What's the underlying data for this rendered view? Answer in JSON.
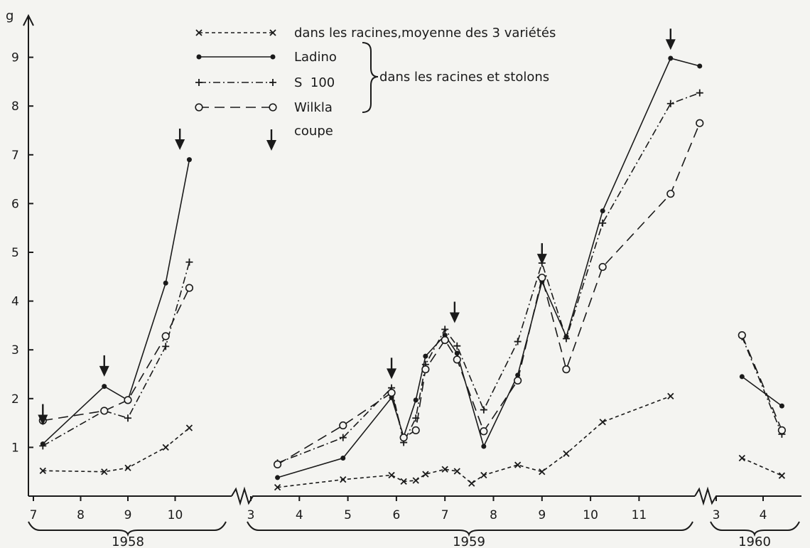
{
  "chart_data": {
    "type": "line",
    "ylabel": "g",
    "ylim": [
      0,
      9.5
    ],
    "yticks": [
      1,
      2,
      3,
      4,
      5,
      6,
      7,
      8,
      9
    ],
    "x_unit": "month",
    "grid": false,
    "legend_position": "top-center",
    "legend": {
      "items": [
        {
          "key": "mean",
          "label": "dans les racines,moyenne des 3 variétés"
        },
        {
          "key": "ladino",
          "label": "Ladino"
        },
        {
          "key": "s100",
          "label": "S  100"
        },
        {
          "key": "wilkla",
          "label": "Wilkla"
        }
      ],
      "bracket_label": "dans les racines et stolons",
      "cut_label": "coupe"
    },
    "periods": [
      {
        "year": "1958",
        "ticks": [
          {
            "label": "7",
            "x": 7.0
          },
          {
            "label": "8",
            "x": 8.0
          },
          {
            "label": "9",
            "x": 9.0
          },
          {
            "label": "10",
            "x": 10.0
          }
        ]
      },
      {
        "year": "1959",
        "ticks": [
          {
            "label": "3",
            "x": 3.0
          },
          {
            "label": "4",
            "x": 4.0
          },
          {
            "label": "5",
            "x": 5.0
          },
          {
            "label": "6",
            "x": 6.0
          },
          {
            "label": "7",
            "x": 7.0
          },
          {
            "label": "8",
            "x": 8.0
          },
          {
            "label": "9",
            "x": 9.0
          },
          {
            "label": "10",
            "x": 10.0
          },
          {
            "label": "11",
            "x": 11.0
          }
        ]
      },
      {
        "year": "1960",
        "ticks": [
          {
            "label": "3",
            "x": 3.0
          },
          {
            "label": "4",
            "x": 4.0
          }
        ]
      }
    ],
    "cuts": [
      {
        "period": 0,
        "x": 7.2,
        "y": 1.45
      },
      {
        "period": 0,
        "x": 8.5,
        "y": 2.45
      },
      {
        "period": 0,
        "x": 10.1,
        "y": 7.1
      },
      {
        "period": 1,
        "x": 5.9,
        "y": 2.4
      },
      {
        "period": 1,
        "x": 7.2,
        "y": 3.55
      },
      {
        "period": 1,
        "x": 9.0,
        "y": 4.75
      },
      {
        "period": 1,
        "x": 11.65,
        "y": 9.15
      }
    ],
    "series": [
      {
        "key": "mean",
        "name": "dans les racines,moyenne des 3 variétés",
        "marker": "x",
        "dash": "5,4",
        "segments": [
          [
            {
              "p": 0,
              "x": 7.2,
              "y": 0.52
            },
            {
              "p": 0,
              "x": 8.5,
              "y": 0.5
            },
            {
              "p": 0,
              "x": 9.0,
              "y": 0.58
            },
            {
              "p": 0,
              "x": 9.8,
              "y": 1.0
            },
            {
              "p": 0,
              "x": 10.3,
              "y": 1.4
            }
          ],
          [
            {
              "p": 1,
              "x": 3.55,
              "y": 0.18
            },
            {
              "p": 1,
              "x": 4.9,
              "y": 0.34
            },
            {
              "p": 1,
              "x": 5.9,
              "y": 0.43
            },
            {
              "p": 1,
              "x": 6.15,
              "y": 0.3
            },
            {
              "p": 1,
              "x": 6.4,
              "y": 0.32
            },
            {
              "p": 1,
              "x": 6.6,
              "y": 0.45
            },
            {
              "p": 1,
              "x": 7.0,
              "y": 0.55
            },
            {
              "p": 1,
              "x": 7.25,
              "y": 0.51
            },
            {
              "p": 1,
              "x": 7.55,
              "y": 0.26
            },
            {
              "p": 1,
              "x": 7.8,
              "y": 0.43
            },
            {
              "p": 1,
              "x": 8.5,
              "y": 0.64
            },
            {
              "p": 1,
              "x": 9.0,
              "y": 0.5
            },
            {
              "p": 1,
              "x": 9.5,
              "y": 0.87
            },
            {
              "p": 1,
              "x": 10.25,
              "y": 1.52
            },
            {
              "p": 1,
              "x": 11.65,
              "y": 2.05
            }
          ],
          [
            {
              "p": 2,
              "x": 3.55,
              "y": 0.78
            },
            {
              "p": 2,
              "x": 4.4,
              "y": 0.42
            }
          ]
        ]
      },
      {
        "key": "ladino",
        "name": "Ladino",
        "marker": "dot",
        "dash": "",
        "segments": [
          [
            {
              "p": 0,
              "x": 7.2,
              "y": 1.07
            },
            {
              "p": 0,
              "x": 8.5,
              "y": 2.25
            },
            {
              "p": 0,
              "x": 9.0,
              "y": 1.97
            },
            {
              "p": 0,
              "x": 9.8,
              "y": 4.37
            },
            {
              "p": 0,
              "x": 10.3,
              "y": 6.9
            }
          ],
          [
            {
              "p": 1,
              "x": 3.55,
              "y": 0.38
            },
            {
              "p": 1,
              "x": 4.9,
              "y": 0.78
            },
            {
              "p": 1,
              "x": 5.9,
              "y": 2.02
            },
            {
              "p": 1,
              "x": 6.15,
              "y": 1.22
            },
            {
              "p": 1,
              "x": 6.4,
              "y": 1.97
            },
            {
              "p": 1,
              "x": 6.6,
              "y": 2.87
            },
            {
              "p": 1,
              "x": 7.0,
              "y": 3.3
            },
            {
              "p": 1,
              "x": 7.25,
              "y": 2.93
            },
            {
              "p": 1,
              "x": 7.8,
              "y": 1.02
            },
            {
              "p": 1,
              "x": 8.5,
              "y": 2.48
            },
            {
              "p": 1,
              "x": 9.0,
              "y": 4.4
            },
            {
              "p": 1,
              "x": 9.5,
              "y": 3.27
            },
            {
              "p": 1,
              "x": 10.25,
              "y": 5.85
            },
            {
              "p": 1,
              "x": 11.65,
              "y": 8.98
            },
            {
              "p": 1,
              "x": 12.25,
              "y": 8.82
            }
          ],
          [
            {
              "p": 2,
              "x": 3.55,
              "y": 2.45
            },
            {
              "p": 2,
              "x": 4.4,
              "y": 1.85
            }
          ]
        ]
      },
      {
        "key": "s100",
        "name": "S  100",
        "marker": "plus",
        "dash": "10,4,2,4",
        "segments": [
          [
            {
              "p": 0,
              "x": 7.2,
              "y": 1.03
            },
            {
              "p": 0,
              "x": 8.5,
              "y": 1.75
            },
            {
              "p": 0,
              "x": 9.0,
              "y": 1.6
            },
            {
              "p": 0,
              "x": 9.8,
              "y": 3.07
            },
            {
              "p": 0,
              "x": 10.3,
              "y": 4.8
            }
          ],
          [
            {
              "p": 1,
              "x": 3.55,
              "y": 0.68
            },
            {
              "p": 1,
              "x": 4.9,
              "y": 1.2
            },
            {
              "p": 1,
              "x": 5.9,
              "y": 2.22
            },
            {
              "p": 1,
              "x": 6.15,
              "y": 1.1
            },
            {
              "p": 1,
              "x": 6.4,
              "y": 1.6
            },
            {
              "p": 1,
              "x": 6.6,
              "y": 2.7
            },
            {
              "p": 1,
              "x": 7.0,
              "y": 3.42
            },
            {
              "p": 1,
              "x": 7.25,
              "y": 3.08
            },
            {
              "p": 1,
              "x": 7.8,
              "y": 1.77
            },
            {
              "p": 1,
              "x": 8.5,
              "y": 3.17
            },
            {
              "p": 1,
              "x": 9.0,
              "y": 4.78
            },
            {
              "p": 1,
              "x": 9.5,
              "y": 3.23
            },
            {
              "p": 1,
              "x": 10.25,
              "y": 5.6
            },
            {
              "p": 1,
              "x": 11.65,
              "y": 8.05
            },
            {
              "p": 1,
              "x": 12.25,
              "y": 8.27
            }
          ],
          [
            {
              "p": 2,
              "x": 3.55,
              "y": 3.27
            },
            {
              "p": 2,
              "x": 4.4,
              "y": 1.27
            }
          ]
        ]
      },
      {
        "key": "wilkla",
        "name": "Wilkla",
        "marker": "circle",
        "dash": "14,8",
        "segments": [
          [
            {
              "p": 0,
              "x": 7.2,
              "y": 1.55
            },
            {
              "p": 0,
              "x": 8.5,
              "y": 1.75
            },
            {
              "p": 0,
              "x": 9.0,
              "y": 1.97
            },
            {
              "p": 0,
              "x": 9.8,
              "y": 3.28
            },
            {
              "p": 0,
              "x": 10.3,
              "y": 4.27
            }
          ],
          [
            {
              "p": 1,
              "x": 3.55,
              "y": 0.65
            },
            {
              "p": 1,
              "x": 4.9,
              "y": 1.45
            },
            {
              "p": 1,
              "x": 5.9,
              "y": 2.12
            },
            {
              "p": 1,
              "x": 6.15,
              "y": 1.2
            },
            {
              "p": 1,
              "x": 6.4,
              "y": 1.35
            },
            {
              "p": 1,
              "x": 6.6,
              "y": 2.6
            },
            {
              "p": 1,
              "x": 7.0,
              "y": 3.2
            },
            {
              "p": 1,
              "x": 7.25,
              "y": 2.8
            },
            {
              "p": 1,
              "x": 7.8,
              "y": 1.33
            },
            {
              "p": 1,
              "x": 8.5,
              "y": 2.37
            },
            {
              "p": 1,
              "x": 9.0,
              "y": 4.48
            },
            {
              "p": 1,
              "x": 9.5,
              "y": 2.6
            },
            {
              "p": 1,
              "x": 10.25,
              "y": 4.7
            },
            {
              "p": 1,
              "x": 11.65,
              "y": 6.2
            },
            {
              "p": 1,
              "x": 12.25,
              "y": 7.65
            }
          ],
          [
            {
              "p": 2,
              "x": 3.55,
              "y": 3.3
            },
            {
              "p": 2,
              "x": 4.4,
              "y": 1.35
            }
          ]
        ]
      }
    ]
  }
}
